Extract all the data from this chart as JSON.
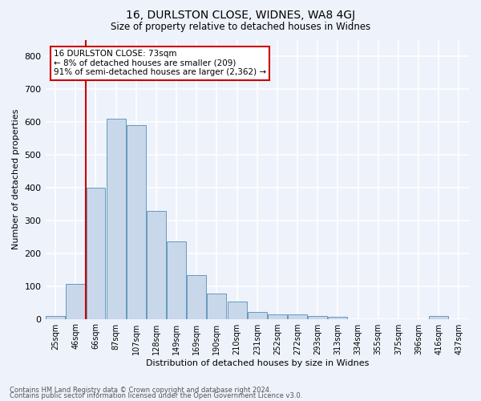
{
  "title1": "16, DURLSTON CLOSE, WIDNES, WA8 4GJ",
  "title2": "Size of property relative to detached houses in Widnes",
  "xlabel": "Distribution of detached houses by size in Widnes",
  "ylabel": "Number of detached properties",
  "footnote1": "Contains HM Land Registry data © Crown copyright and database right 2024.",
  "footnote2": "Contains public sector information licensed under the Open Government Licence v3.0.",
  "annotation_line1": "16 DURLSTON CLOSE: 73sqm",
  "annotation_line2": "← 8% of detached houses are smaller (209)",
  "annotation_line3": "91% of semi-detached houses are larger (2,362) →",
  "bar_labels": [
    "25sqm",
    "46sqm",
    "66sqm",
    "87sqm",
    "107sqm",
    "128sqm",
    "149sqm",
    "169sqm",
    "190sqm",
    "210sqm",
    "231sqm",
    "252sqm",
    "272sqm",
    "293sqm",
    "313sqm",
    "334sqm",
    "355sqm",
    "375sqm",
    "396sqm",
    "416sqm",
    "437sqm"
  ],
  "bar_values": [
    8,
    106,
    401,
    611,
    590,
    330,
    237,
    134,
    77,
    52,
    22,
    14,
    14,
    8,
    7,
    0,
    0,
    0,
    0,
    9,
    0
  ],
  "bar_color": "#c8d8ea",
  "bar_edge_color": "#6699bb",
  "red_line_color": "#cc0000",
  "red_line_index": 2,
  "annotation_box_facecolor": "#ffffff",
  "annotation_box_edgecolor": "#cc0000",
  "background_color": "#eef2fb",
  "grid_color": "#ffffff",
  "ylim": [
    0,
    850
  ],
  "yticks": [
    0,
    100,
    200,
    300,
    400,
    500,
    600,
    700,
    800
  ],
  "title1_fontsize": 10,
  "title2_fontsize": 8.5,
  "annotation_fontsize": 7.5,
  "xlabel_fontsize": 8,
  "ylabel_fontsize": 8,
  "xtick_fontsize": 7,
  "ytick_fontsize": 8,
  "footnote_fontsize": 6
}
